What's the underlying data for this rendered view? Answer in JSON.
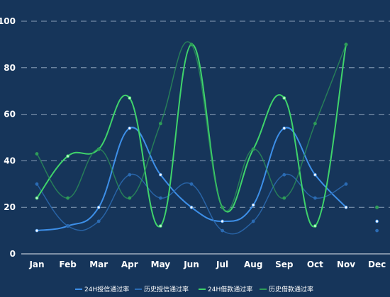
{
  "chart_data": {
    "type": "line",
    "categories": [
      "Jan",
      "Feb",
      "Mar",
      "Apr",
      "May",
      "Jun",
      "Jul",
      "Aug",
      "Sep",
      "Oct",
      "Nov",
      "Dec"
    ],
    "ylim": [
      0,
      100
    ],
    "yticks": [
      0,
      20,
      40,
      60,
      80,
      100
    ],
    "grid": true,
    "legend_position": "bottom",
    "series": [
      {
        "name": "24H授信通过率",
        "color": "#3d8fe8",
        "values": [
          10,
          12,
          20,
          54,
          34,
          20,
          14,
          21,
          54,
          34,
          20,
          14
        ]
      },
      {
        "name": "历史授信通过率",
        "color": "#2b6bb3",
        "values": [
          30,
          12,
          14,
          34,
          24,
          30,
          10,
          14,
          34,
          24,
          30,
          10
        ]
      },
      {
        "name": "24H借款通过率",
        "color": "#3fd36b",
        "values": [
          24,
          42,
          45,
          67,
          12,
          90,
          20,
          45,
          67,
          12,
          90,
          20
        ]
      },
      {
        "name": "历史借款通过率",
        "color": "#2e9c58",
        "values": [
          43,
          24,
          45,
          24,
          56,
          90,
          20,
          45,
          24,
          56,
          90,
          20
        ]
      }
    ]
  }
}
